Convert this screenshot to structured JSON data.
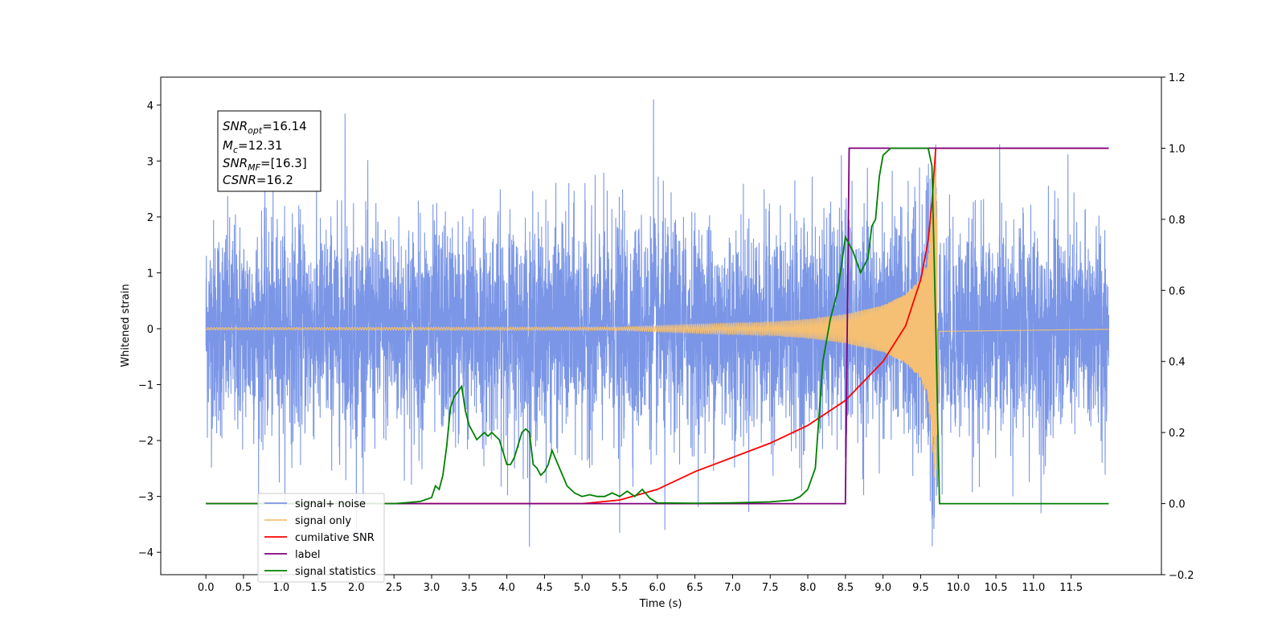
{
  "chart_data": {
    "type": "line",
    "xlabel": "Time (s)",
    "ylabel": "Whitened strain",
    "xlim": [
      -0.6,
      12.7
    ],
    "ylim_left": [
      -4.4,
      4.5
    ],
    "ylim_right": [
      -0.2,
      1.2
    ],
    "x_ticks": [
      "0.0",
      "0.5",
      "1.0",
      "1.5",
      "2.0",
      "2.5",
      "3.0",
      "3.5",
      "4.0",
      "4.5",
      "5.0",
      "5.5",
      "6.0",
      "6.5",
      "7.0",
      "7.5",
      "8.0",
      "8.5",
      "9.0",
      "9.5",
      "10.0",
      "10.5",
      "11.0",
      "11.5"
    ],
    "y_ticks_left": [
      "−4",
      "−3",
      "−2",
      "−1",
      "0",
      "1",
      "2",
      "3",
      "4"
    ],
    "y_ticks_right": [
      "−0.2",
      "0.0",
      "0.2",
      "0.4",
      "0.6",
      "0.8",
      "1.0",
      "1.2"
    ],
    "grid": false,
    "legend": {
      "placement": "lower-left",
      "entries": [
        {
          "label": "signal+ noise",
          "color": "#7b96e6"
        },
        {
          "label": "signal only",
          "color": "#f5c073"
        },
        {
          "label": "cumilative SNR",
          "color": "#ff0000"
        },
        {
          "label": "label",
          "color": "#800080"
        },
        {
          "label": "signal statistics",
          "color": "#008000"
        }
      ]
    },
    "annotation": {
      "lines": [
        {
          "base": "SNR",
          "sub": "opt",
          "value": "=16.14"
        },
        {
          "base": "M",
          "sub": "c",
          "value": "=12.31"
        },
        {
          "base": "SNR",
          "sub": "MF",
          "value": "=[16.3]"
        },
        {
          "base": "CSNR",
          "sub": "",
          "value": "=16.2"
        }
      ]
    },
    "series": [
      {
        "name": "signal+ noise",
        "axis": "left",
        "color": "#7b96e6",
        "x_range": [
          0,
          12
        ],
        "amplitude_envelope": {
          "x": [
            0,
            12
          ],
          "y": [
            2.9,
            2.9
          ]
        },
        "extreme_spikes": [
          [
            1.85,
            3.85
          ],
          [
            2.0,
            -3.7
          ],
          [
            4.3,
            -3.9
          ],
          [
            5.5,
            -3.65
          ],
          [
            5.95,
            4.1
          ],
          [
            6.1,
            -3.6
          ],
          [
            9.65,
            -3.4
          ],
          [
            9.7,
            3.3
          ],
          [
            10.55,
            3.3
          ],
          [
            11.1,
            -3.3
          ]
        ]
      },
      {
        "name": "signal only",
        "axis": "left",
        "color": "#f5c073",
        "x_range": [
          0,
          12
        ],
        "chirp_merger_time": 9.7,
        "envelope": {
          "x": [
            0,
            5.5,
            6.5,
            7.5,
            8.0,
            8.5,
            9.0,
            9.3,
            9.5,
            9.6,
            9.66,
            9.7,
            9.75,
            12
          ],
          "y": [
            0.02,
            0.03,
            0.08,
            0.12,
            0.17,
            0.26,
            0.42,
            0.62,
            0.9,
            1.3,
            2.3,
            3.0,
            0.05,
            0.01
          ]
        }
      },
      {
        "name": "cumilative SNR",
        "axis": "right",
        "color": "#ff0000",
        "x": [
          0,
          5.0,
          5.5,
          6.0,
          6.5,
          7.0,
          7.5,
          8.0,
          8.5,
          9.0,
          9.3,
          9.5,
          9.6,
          9.65,
          9.7,
          12
        ],
        "y": [
          0,
          0,
          0.01,
          0.04,
          0.09,
          0.13,
          0.17,
          0.22,
          0.29,
          0.4,
          0.5,
          0.63,
          0.74,
          0.85,
          1.0,
          1.0
        ]
      },
      {
        "name": "label",
        "axis": "right",
        "color": "#800080",
        "x": [
          0,
          8.5,
          8.55,
          12
        ],
        "y": [
          0,
          0,
          1,
          1
        ]
      },
      {
        "name": "signal statistics",
        "axis": "right",
        "color": "#008000",
        "x": [
          0,
          2.0,
          2.5,
          2.7,
          2.85,
          3.0,
          3.05,
          3.1,
          3.15,
          3.2,
          3.25,
          3.3,
          3.4,
          3.45,
          3.5,
          3.55,
          3.6,
          3.7,
          3.75,
          3.8,
          3.85,
          3.9,
          4.0,
          4.05,
          4.1,
          4.2,
          4.25,
          4.3,
          4.35,
          4.4,
          4.45,
          4.5,
          4.55,
          4.6,
          4.7,
          4.8,
          4.9,
          5.0,
          5.1,
          5.2,
          5.3,
          5.4,
          5.5,
          5.6,
          5.7,
          5.8,
          5.9,
          6.0,
          6.5,
          7.0,
          7.5,
          7.8,
          7.9,
          8.0,
          8.1,
          8.15,
          8.2,
          8.3,
          8.4,
          8.5,
          8.6,
          8.7,
          8.8,
          8.85,
          8.9,
          8.95,
          9.0,
          9.1,
          9.2,
          9.6,
          9.65,
          9.7,
          9.75,
          12
        ],
        "y": [
          0,
          0,
          0,
          0.003,
          0.006,
          0.017,
          0.05,
          0.04,
          0.08,
          0.16,
          0.27,
          0.3,
          0.33,
          0.26,
          0.22,
          0.2,
          0.18,
          0.2,
          0.19,
          0.2,
          0.19,
          0.18,
          0.11,
          0.11,
          0.13,
          0.2,
          0.21,
          0.2,
          0.11,
          0.1,
          0.08,
          0.09,
          0.11,
          0.15,
          0.1,
          0.05,
          0.03,
          0.02,
          0.025,
          0.02,
          0.02,
          0.03,
          0.02,
          0.035,
          0.02,
          0.04,
          0.015,
          0.002,
          0.001,
          0.002,
          0.005,
          0.01,
          0.02,
          0.04,
          0.1,
          0.25,
          0.4,
          0.52,
          0.6,
          0.75,
          0.71,
          0.65,
          0.69,
          0.78,
          0.8,
          0.92,
          0.98,
          1.0,
          1.0,
          1.0,
          0.95,
          0.5,
          0.0,
          0.0
        ]
      }
    ]
  }
}
